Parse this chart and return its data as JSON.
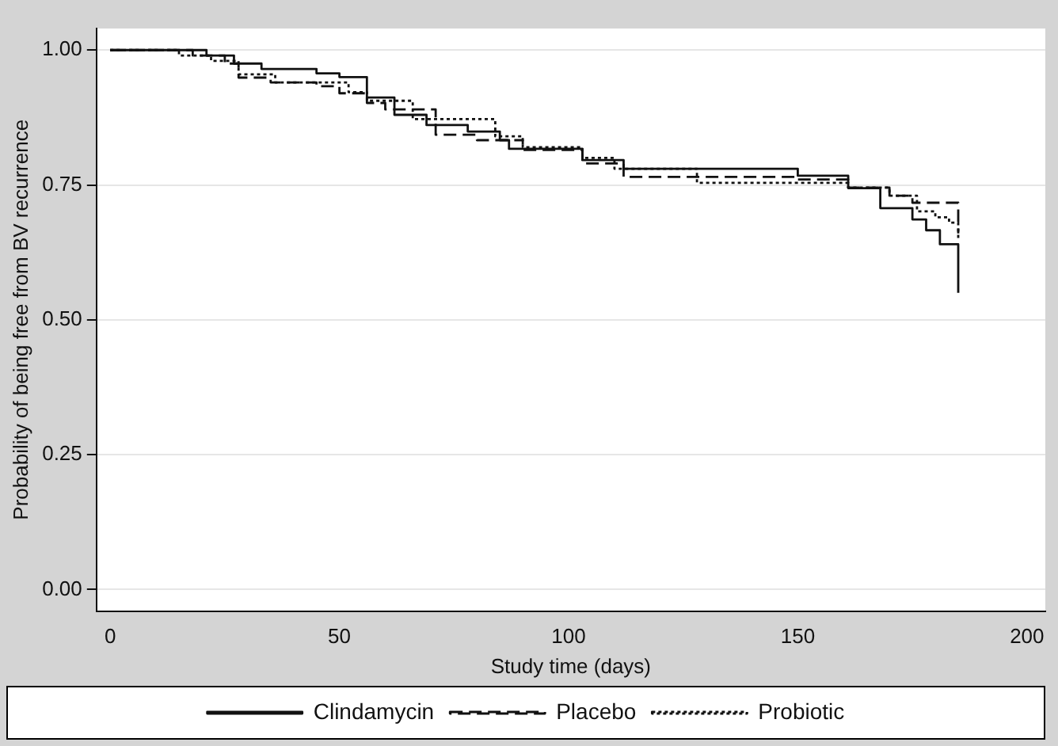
{
  "chart_data": {
    "type": "step",
    "xlabel": "Study time (days)",
    "ylabel": "Probability of being free from BV recurrence",
    "xlim": [
      -3,
      204
    ],
    "xticks": [
      0,
      50,
      100,
      150,
      200
    ],
    "ylim": [
      -0.04,
      1.04
    ],
    "yticks": [
      {
        "value": 0,
        "label": "0.00"
      },
      {
        "value": 0.25,
        "label": "0.25"
      },
      {
        "value": 0.5,
        "label": "0.50"
      },
      {
        "value": 0.75,
        "label": "0.75"
      },
      {
        "value": 1,
        "label": "1.00"
      }
    ],
    "grid": "y",
    "legend": "bottom",
    "marker": "none",
    "series": [
      {
        "name": "Clindamycin",
        "color": "#111111",
        "line_style": "solid",
        "x": [
          0,
          21,
          27,
          33,
          45,
          50,
          56,
          62,
          69,
          78,
          85,
          87,
          103,
          112,
          150,
          161,
          168,
          175,
          178,
          181,
          185
        ],
        "values": [
          1,
          0.99,
          0.975,
          0.965,
          0.957,
          0.95,
          0.912,
          0.88,
          0.861,
          0.849,
          0.833,
          0.817,
          0.796,
          0.78,
          0.767,
          0.744,
          0.707,
          0.686,
          0.666,
          0.64,
          0.55
        ]
      },
      {
        "name": "Placebo",
        "color": "#111111",
        "line_style": "dashed",
        "x": [
          0,
          18,
          25,
          28,
          35,
          45,
          50,
          56,
          60,
          71,
          80,
          90,
          103,
          112,
          150,
          161,
          170,
          175,
          185
        ],
        "values": [
          1,
          0.99,
          0.975,
          0.949,
          0.94,
          0.933,
          0.92,
          0.902,
          0.89,
          0.843,
          0.833,
          0.815,
          0.79,
          0.765,
          0.76,
          0.745,
          0.73,
          0.717,
          0.66
        ]
      },
      {
        "name": "Probiotic",
        "color": "#111111",
        "line_style": "dotted",
        "x": [
          0,
          15,
          22,
          28,
          36,
          52,
          56,
          66,
          84,
          90,
          103,
          110,
          128,
          150,
          161,
          170,
          176,
          180,
          183,
          185
        ],
        "values": [
          1,
          0.99,
          0.98,
          0.955,
          0.94,
          0.922,
          0.906,
          0.872,
          0.84,
          0.82,
          0.8,
          0.78,
          0.754,
          0.754,
          0.745,
          0.73,
          0.701,
          0.69,
          0.68,
          0.65
        ]
      }
    ]
  }
}
